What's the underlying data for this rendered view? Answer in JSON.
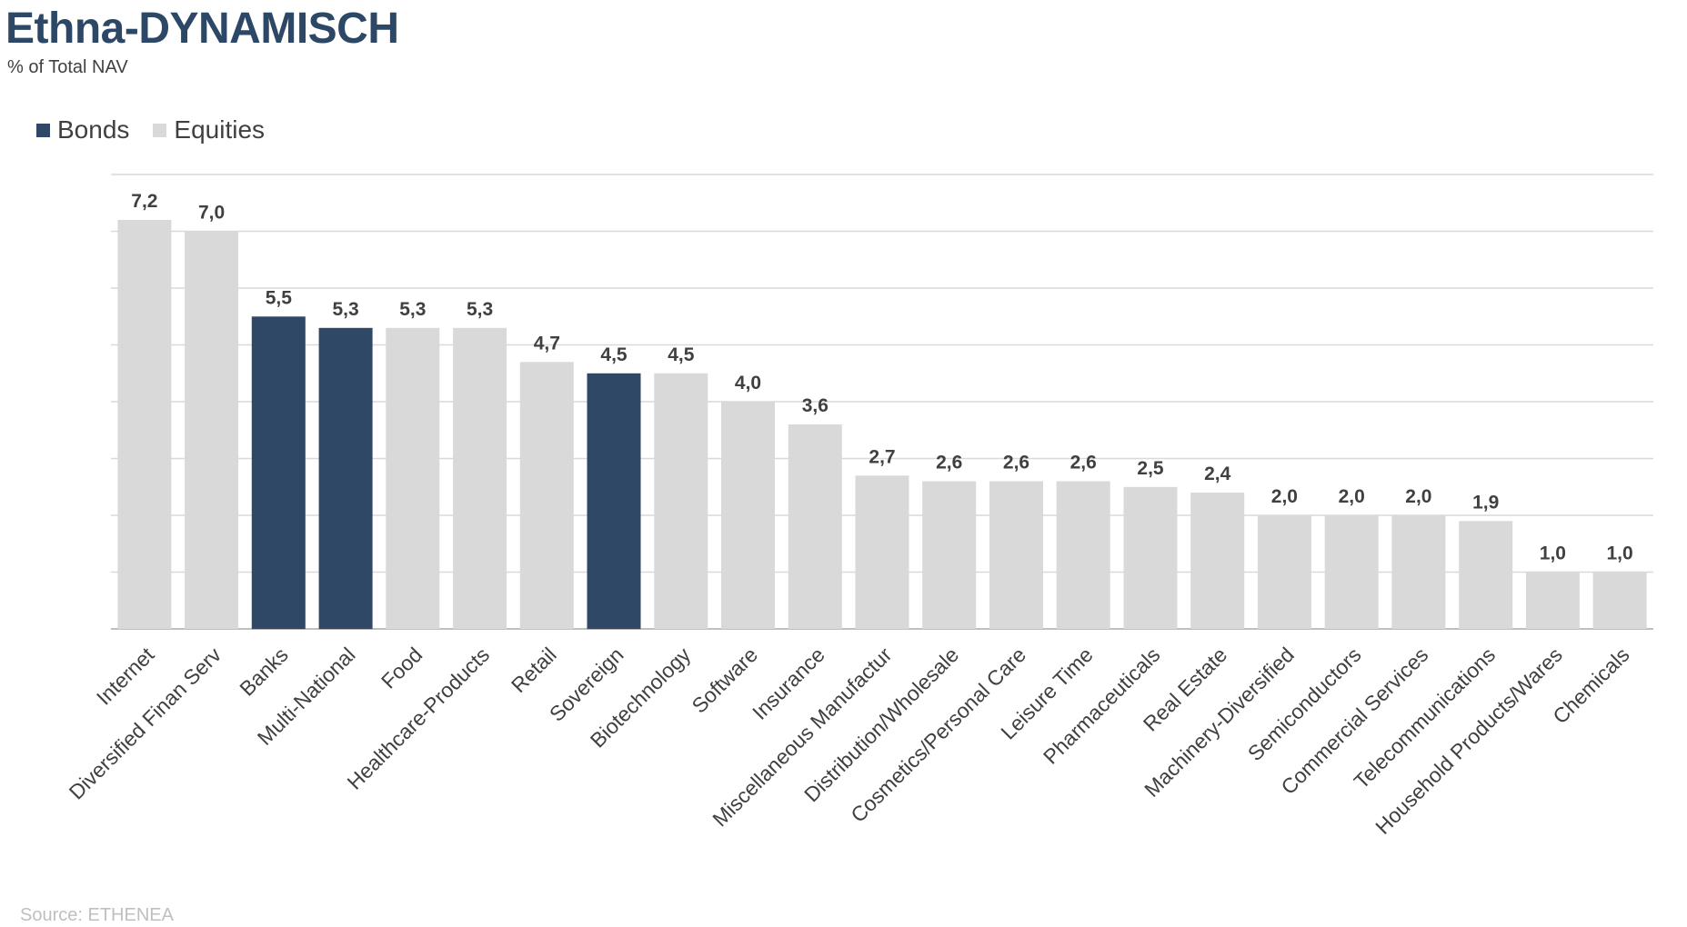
{
  "header": {
    "title": "Ethna-DYNAMISCH",
    "subtitle": "% of Total NAV"
  },
  "footer": {
    "source": "Source: ETHENEA"
  },
  "colors": {
    "bonds": "#2e4866",
    "equities": "#d9d9d9",
    "gridline": "#d9d9d9",
    "axis": "#bfbfbf",
    "title": "#2d4866"
  },
  "chart_data": {
    "type": "bar",
    "title": "Ethna-DYNAMISCH",
    "subtitle": "% of Total NAV",
    "legend": {
      "position": "top-left",
      "entries": [
        "Bonds",
        "Equities"
      ]
    },
    "grid": true,
    "ylim": [
      0,
      8
    ],
    "ystep": 1,
    "categories": [
      "Internet",
      "Diversified Finan Serv",
      "Banks",
      "Multi-National",
      "Food",
      "Healthcare-Products",
      "Retail",
      "Sovereign",
      "Biotechnology",
      "Software",
      "Insurance",
      "Miscellaneous Manufactur",
      "Distribution/Wholesale",
      "Cosmetics/Personal Care",
      "Leisure Time",
      "Pharmaceuticals",
      "Real Estate",
      "Machinery-Diversified",
      "Semiconductors",
      "Commercial Services",
      "Telecommunications",
      "Household Products/Wares",
      "Chemicals"
    ],
    "values": [
      7.2,
      7.0,
      5.5,
      5.3,
      5.3,
      5.3,
      4.7,
      4.5,
      4.5,
      4.0,
      3.6,
      2.7,
      2.6,
      2.6,
      2.6,
      2.5,
      2.4,
      2.0,
      2.0,
      2.0,
      1.9,
      1.0,
      1.0
    ],
    "value_labels": [
      "7,2",
      "7,0",
      "5,5",
      "5,3",
      "5,3",
      "5,3",
      "4,7",
      "4,5",
      "4,5",
      "4,0",
      "3,6",
      "2,7",
      "2,6",
      "2,6",
      "2,6",
      "2,5",
      "2,4",
      "2,0",
      "2,0",
      "2,0",
      "1,9",
      "1,0",
      "1,0"
    ],
    "series_membership": [
      "Equities",
      "Equities",
      "Bonds",
      "Bonds",
      "Equities",
      "Equities",
      "Equities",
      "Bonds",
      "Equities",
      "Equities",
      "Equities",
      "Equities",
      "Equities",
      "Equities",
      "Equities",
      "Equities",
      "Equities",
      "Equities",
      "Equities",
      "Equities",
      "Equities",
      "Equities",
      "Equities"
    ]
  }
}
